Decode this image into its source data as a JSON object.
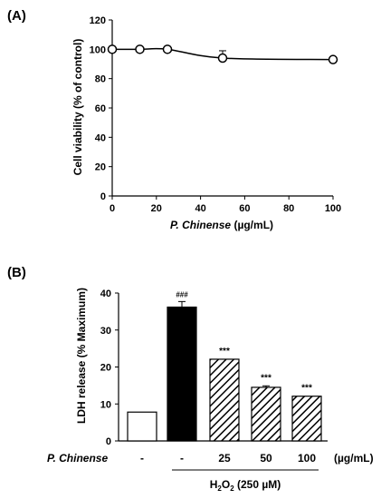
{
  "chart_data": [
    {
      "panel_label": "(A)",
      "type": "line",
      "xlabel_italic": "P. Chinense",
      "xlabel_rest": " (µg/mL)",
      "ylabel": "Cell viability (% of control)",
      "xlim": [
        0,
        100
      ],
      "ylim": [
        0,
        120
      ],
      "xticks": [
        0,
        20,
        40,
        60,
        80,
        100
      ],
      "yticks": [
        0,
        20,
        40,
        60,
        80,
        100,
        120
      ],
      "grid": false,
      "series": [
        {
          "x": [
            0,
            12.5,
            25,
            50,
            100
          ],
          "y": [
            100,
            100,
            100,
            94,
            93
          ],
          "err": [
            0,
            0,
            0,
            5,
            0
          ]
        }
      ]
    },
    {
      "panel_label": "(B)",
      "type": "bar",
      "ylabel": "LDH release (% Maximum)",
      "ylim": [
        0,
        40
      ],
      "yticks": [
        0,
        10,
        20,
        30,
        40
      ],
      "grid": false,
      "categories": [
        "-",
        "-",
        "25",
        "50",
        "100"
      ],
      "values": [
        7.8,
        36.2,
        22.1,
        14.5,
        12.1
      ],
      "err": [
        0,
        1.5,
        0,
        0.4,
        0
      ],
      "fills": [
        "white",
        "black",
        "hatch",
        "hatch",
        "hatch"
      ],
      "annotations": [
        "",
        "###",
        "***",
        "***",
        "***"
      ],
      "row_label": "P. Chinense",
      "row_unit": "(µg/mL)",
      "treatment_label": "H",
      "treatment_sub": "2",
      "treatment_o": "O",
      "treatment_rest": " (250 µM)"
    }
  ]
}
